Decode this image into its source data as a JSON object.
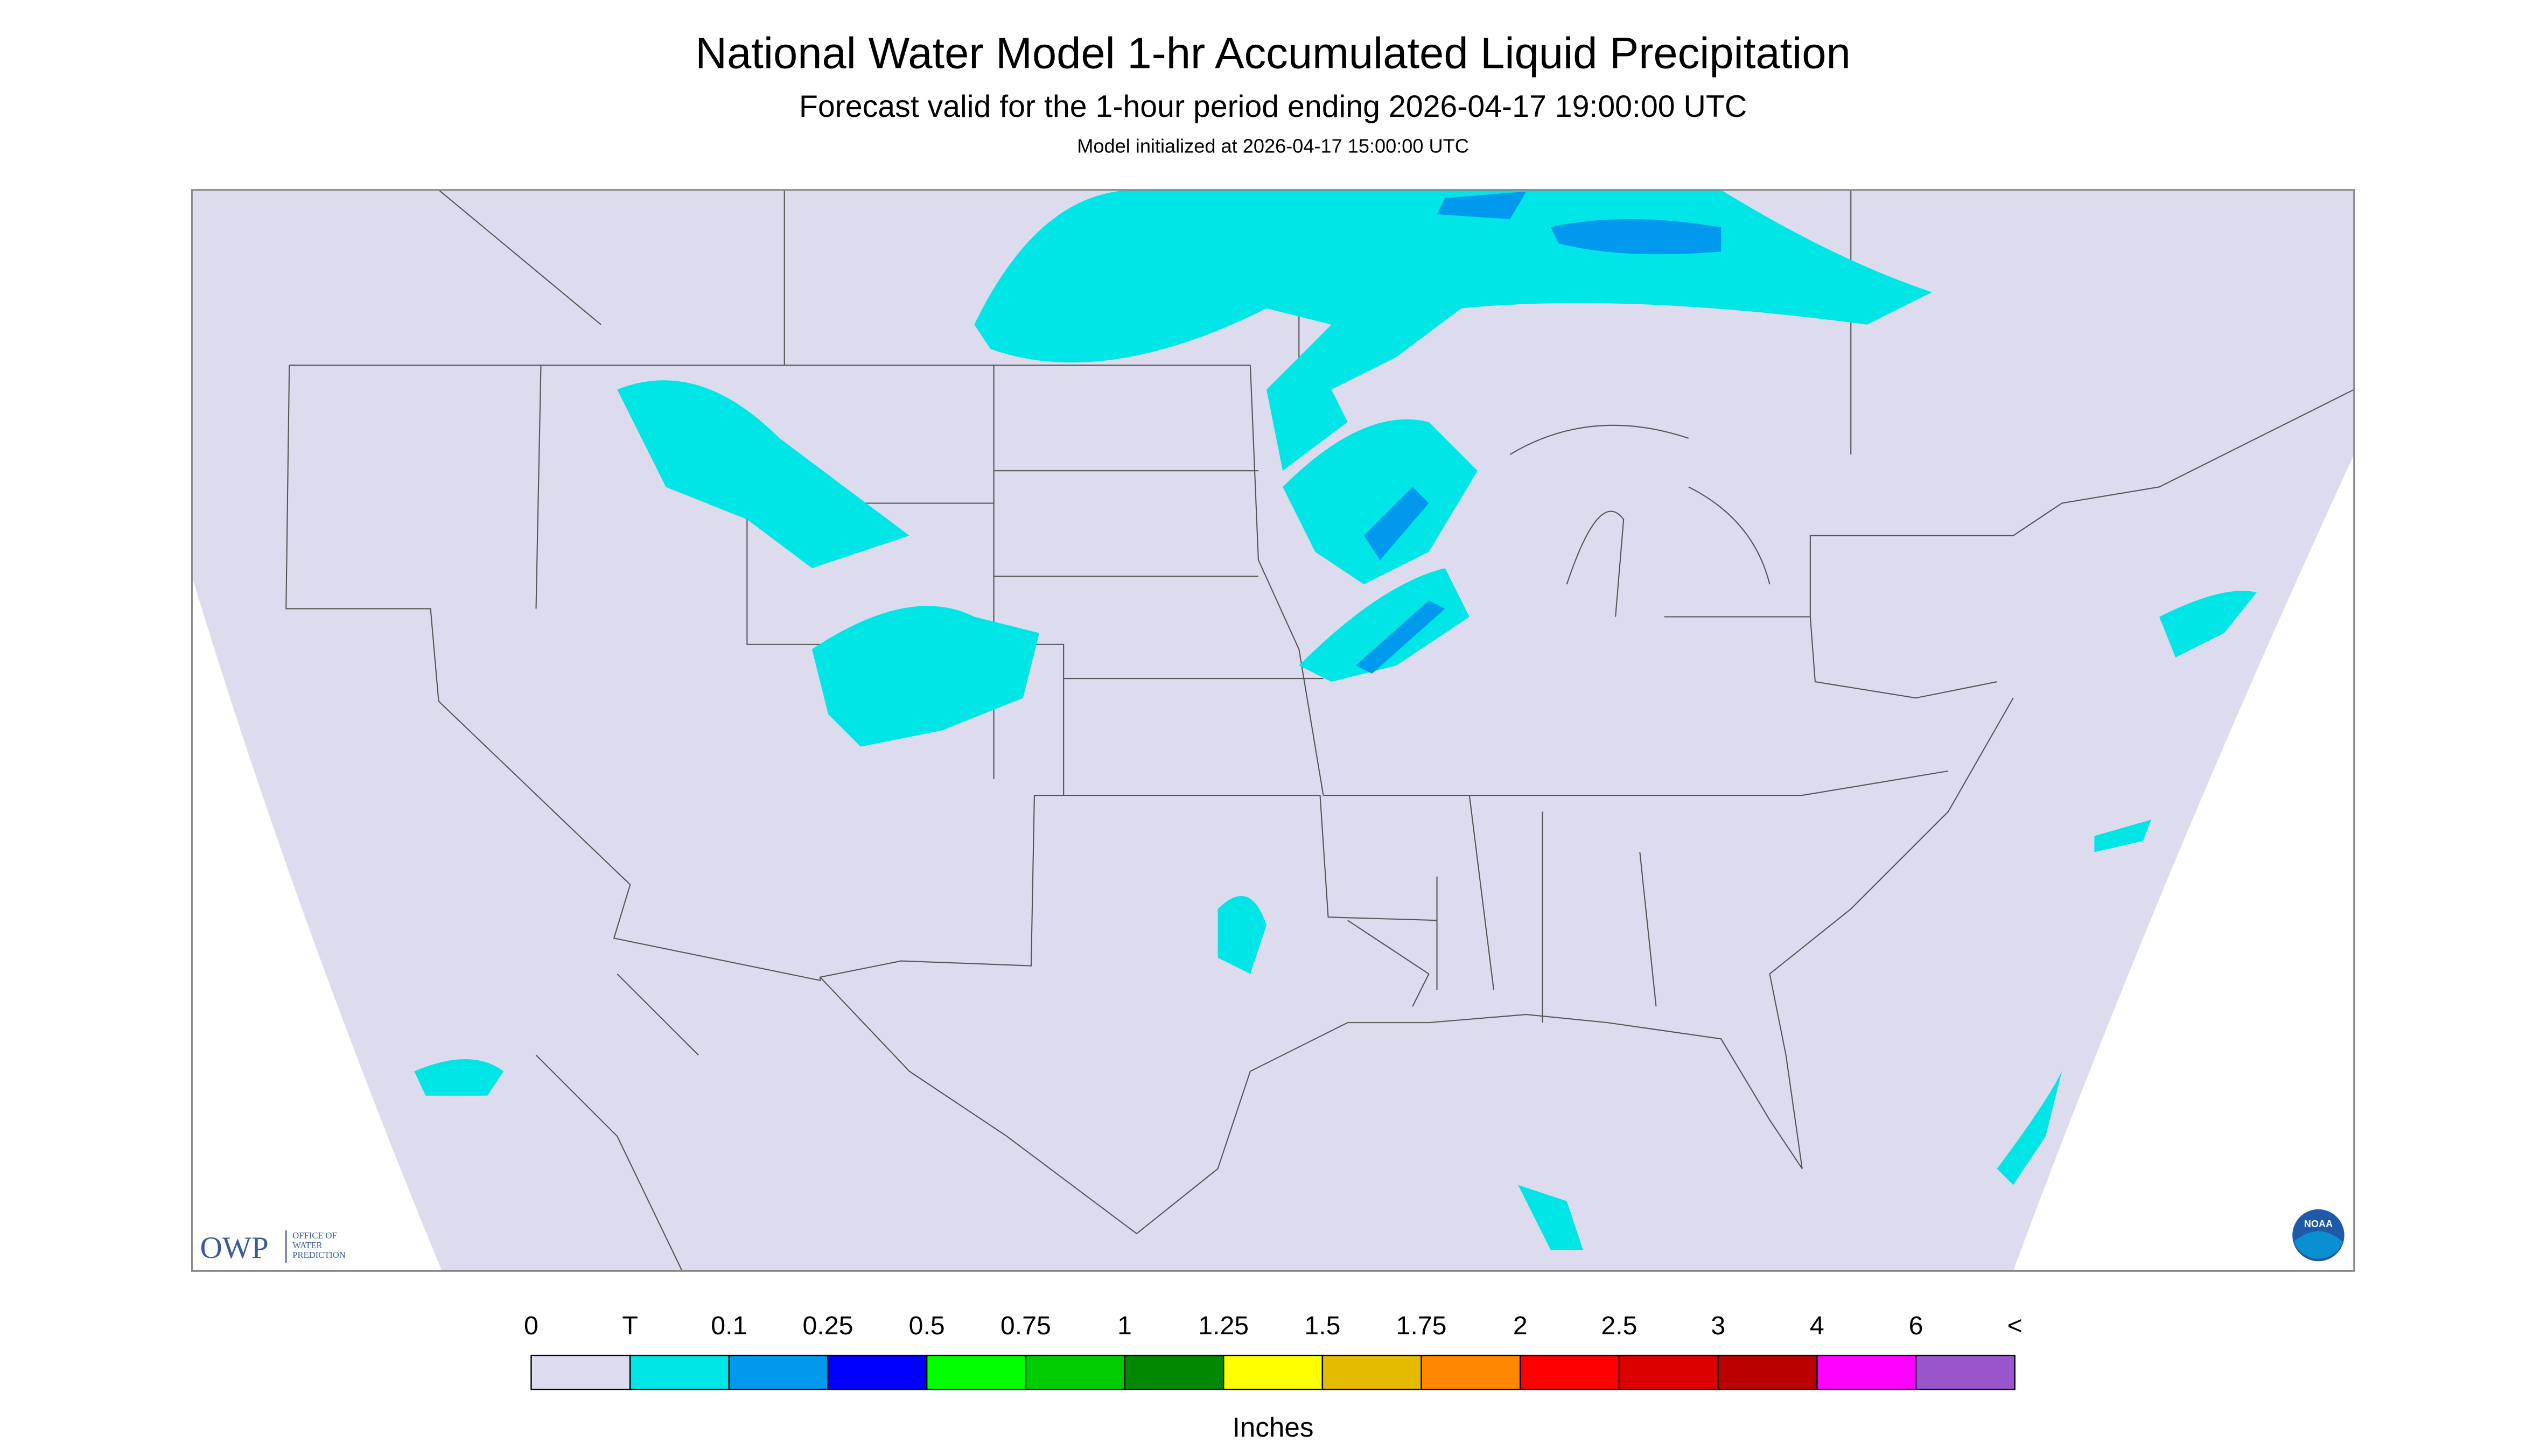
{
  "header": {
    "title": "National Water Model 1-hr Accumulated Liquid Precipitation",
    "subtitle": "Forecast valid for the 1-hour period ending 2026-04-17 19:00:00 UTC",
    "initialized": "Model initialized at 2026-04-17 15:00:00 UTC"
  },
  "legend": {
    "labels": [
      "0",
      "T",
      "0.1",
      "0.25",
      "0.5",
      "0.75",
      "1",
      "1.25",
      "1.5",
      "1.75",
      "2",
      "2.5",
      "3",
      "4",
      "6",
      "<"
    ],
    "colors": [
      "#dcdcee",
      "#00e5e5",
      "#0099ee",
      "#0000ff",
      "#00ff00",
      "#00cc00",
      "#008800",
      "#ffff00",
      "#e5bb00",
      "#ff8800",
      "#ff0000",
      "#dd0000",
      "#bb0000",
      "#ff00ff",
      "#9955cc"
    ],
    "units": "Inches"
  },
  "logos": {
    "owp": "OWP",
    "owp_lines": [
      "OFFICE OF",
      "WATER",
      "PREDICTION"
    ],
    "noaa": "NOAA"
  }
}
